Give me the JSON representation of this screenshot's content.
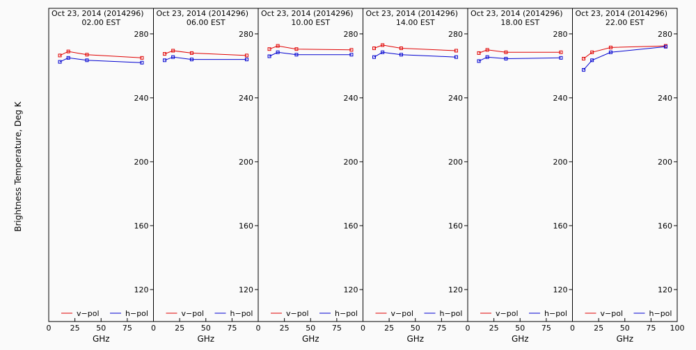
{
  "ylabel": "Brightness Temperature, Deg K",
  "xlabel": "GHz",
  "legend": {
    "v_pol": "v−pol",
    "h_pol": "h−pol"
  },
  "colors": {
    "v_pol": "#e00000",
    "h_pol": "#0000d0",
    "axis": "#000000",
    "background": "#fafafa"
  },
  "chart_data": [
    {
      "type": "line",
      "title": "Oct 23, 2014 (2014296)",
      "subtitle": "02.00 EST",
      "xlabel": "GHz",
      "xlim": [
        0,
        100
      ],
      "ylim": [
        100,
        296
      ],
      "xticks": [
        "0",
        "25",
        "50",
        "75"
      ],
      "yticks": [
        120,
        160,
        200,
        240,
        280
      ],
      "x": [
        10.65,
        18.7,
        36.5,
        89.0
      ],
      "series": [
        {
          "name": "v−pol",
          "values": [
            266.5,
            269.0,
            267.0,
            265.0
          ]
        },
        {
          "name": "h−pol",
          "values": [
            262.5,
            265.0,
            263.5,
            262.0
          ]
        }
      ],
      "legend_position": "bottom"
    },
    {
      "type": "line",
      "title": "Oct 23, 2014 (2014296)",
      "subtitle": "06.00 EST",
      "xlabel": "GHz",
      "xlim": [
        0,
        100
      ],
      "ylim": [
        100,
        296
      ],
      "xticks": [
        "0",
        "25",
        "50",
        "75"
      ],
      "yticks": [
        120,
        160,
        200,
        240,
        280
      ],
      "x": [
        10.65,
        18.7,
        36.5,
        89.0
      ],
      "series": [
        {
          "name": "v−pol",
          "values": [
            267.5,
            269.5,
            268.0,
            266.5
          ]
        },
        {
          "name": "h−pol",
          "values": [
            263.5,
            265.5,
            264.0,
            264.0
          ]
        }
      ],
      "legend_position": "bottom"
    },
    {
      "type": "line",
      "title": "Oct 23, 2014 (2014296)",
      "subtitle": "10.00 EST",
      "xlabel": "GHz",
      "xlim": [
        0,
        100
      ],
      "ylim": [
        100,
        296
      ],
      "xticks": [
        "0",
        "25",
        "50",
        "75"
      ],
      "yticks": [
        120,
        160,
        200,
        240,
        280
      ],
      "x": [
        10.65,
        18.7,
        36.5,
        89.0
      ],
      "series": [
        {
          "name": "v−pol",
          "values": [
            270.5,
            272.5,
            270.5,
            270.0
          ]
        },
        {
          "name": "h−pol",
          "values": [
            266.0,
            268.5,
            267.0,
            267.0
          ]
        }
      ],
      "legend_position": "bottom"
    },
    {
      "type": "line",
      "title": "Oct 23, 2014 (2014296)",
      "subtitle": "14.00 EST",
      "xlabel": "GHz",
      "xlim": [
        0,
        100
      ],
      "ylim": [
        100,
        296
      ],
      "xticks": [
        "0",
        "25",
        "50",
        "75"
      ],
      "yticks": [
        120,
        160,
        200,
        240,
        280
      ],
      "x": [
        10.65,
        18.7,
        36.5,
        89.0
      ],
      "series": [
        {
          "name": "v−pol",
          "values": [
            271.0,
            273.0,
            271.0,
            269.5
          ]
        },
        {
          "name": "h−pol",
          "values": [
            265.5,
            268.5,
            267.0,
            265.5
          ]
        }
      ],
      "legend_position": "bottom"
    },
    {
      "type": "line",
      "title": "Oct 23, 2014 (2014296)",
      "subtitle": "18.00 EST",
      "xlabel": "GHz",
      "xlim": [
        0,
        100
      ],
      "ylim": [
        100,
        296
      ],
      "xticks": [
        "0",
        "25",
        "50",
        "75"
      ],
      "yticks": [
        120,
        160,
        200,
        240,
        280
      ],
      "x": [
        10.65,
        18.7,
        36.5,
        89.0
      ],
      "series": [
        {
          "name": "v−pol",
          "values": [
            268.0,
            270.0,
            268.5,
            268.5
          ]
        },
        {
          "name": "h−pol",
          "values": [
            263.0,
            265.5,
            264.5,
            265.0
          ]
        }
      ],
      "legend_position": "bottom"
    },
    {
      "type": "line",
      "title": "Oct 23, 2014 (2014296)",
      "subtitle": "22.00 EST",
      "xlabel": "GHz",
      "xlim": [
        0,
        100
      ],
      "ylim": [
        100,
        296
      ],
      "xticks": [
        "0",
        "25",
        "50",
        "75",
        "100"
      ],
      "yticks": [
        120,
        160,
        200,
        240,
        280
      ],
      "x": [
        10.65,
        18.7,
        36.5,
        89.0
      ],
      "series": [
        {
          "name": "v−pol",
          "values": [
            264.5,
            268.5,
            271.5,
            272.5
          ]
        },
        {
          "name": "h−pol",
          "values": [
            257.5,
            263.5,
            268.5,
            272.0
          ]
        }
      ],
      "legend_position": "bottom"
    }
  ]
}
